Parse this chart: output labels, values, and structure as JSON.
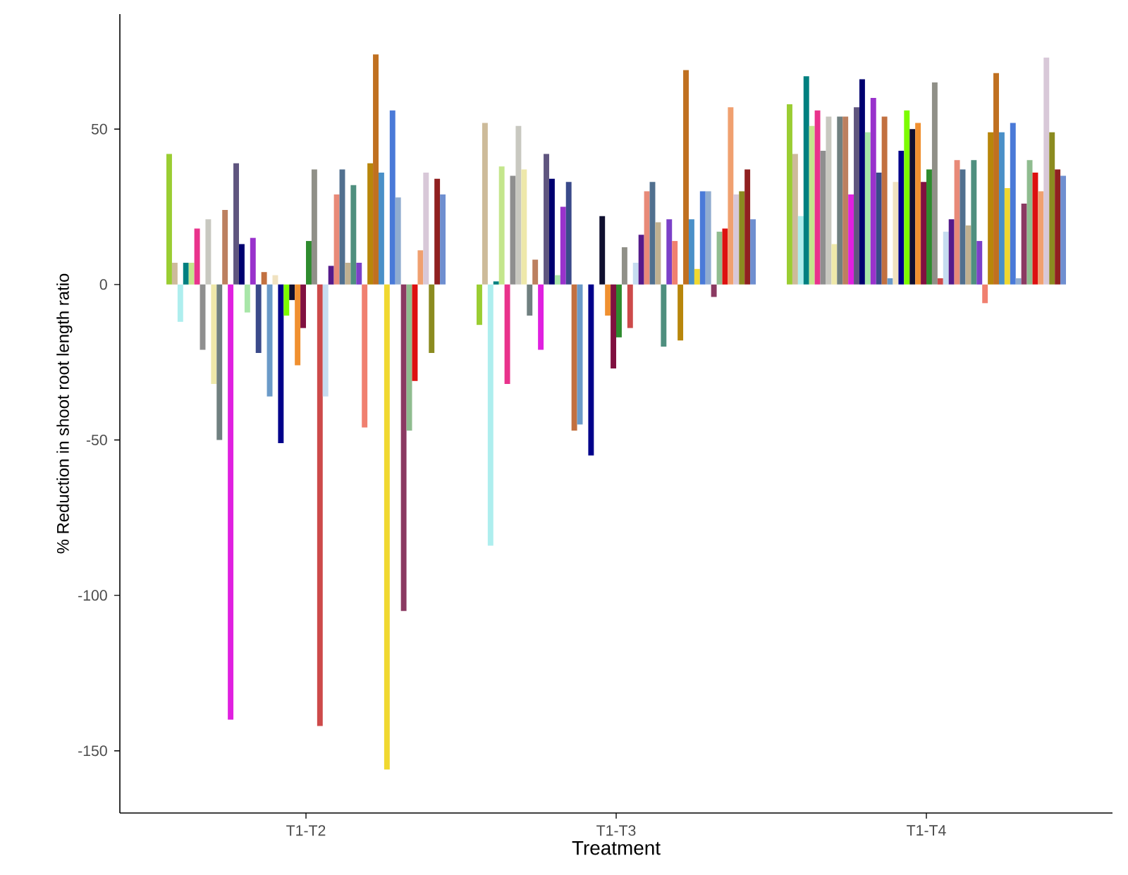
{
  "chart_data": {
    "type": "bar",
    "xlabel": "Treatment",
    "ylabel": "% Reduction in shoot root length ratio",
    "categories": [
      "T1-T2",
      "T1-T3",
      "T1-T4"
    ],
    "ylim": [
      -170,
      87
    ],
    "yticks": [
      -150,
      -100,
      -50,
      0,
      50
    ],
    "grid": false,
    "series": [
      {
        "color": "#9acd32",
        "values": [
          42,
          -13,
          58
        ]
      },
      {
        "color": "#cdbb9a",
        "values": [
          7,
          52,
          42
        ]
      },
      {
        "color": "#aeeeee",
        "values": [
          -12,
          -84,
          22
        ]
      },
      {
        "color": "#008080",
        "values": [
          7,
          1,
          67
        ]
      },
      {
        "color": "#c4e68c",
        "values": [
          7,
          38,
          51
        ]
      },
      {
        "color": "#e9338c",
        "values": [
          18,
          -32,
          56
        ]
      },
      {
        "color": "#8f8f8f",
        "values": [
          -21,
          35,
          43
        ]
      },
      {
        "color": "#c8c8c0",
        "values": [
          21,
          51,
          54
        ]
      },
      {
        "color": "#eee8aa",
        "values": [
          -32,
          37,
          13
        ]
      },
      {
        "color": "#708080",
        "values": [
          -50,
          -10,
          54
        ]
      },
      {
        "color": "#bc8060",
        "values": [
          24,
          8,
          54
        ]
      },
      {
        "color": "#e020e0",
        "values": [
          -140,
          -21,
          29
        ]
      },
      {
        "color": "#5f557f",
        "values": [
          39,
          42,
          57
        ]
      },
      {
        "color": "#000070",
        "values": [
          13,
          34,
          66
        ]
      },
      {
        "color": "#a8e6a8",
        "values": [
          -9,
          3,
          49
        ]
      },
      {
        "color": "#9932cc",
        "values": [
          15,
          25,
          60
        ]
      },
      {
        "color": "#3a4a8a",
        "values": [
          -22,
          33,
          36
        ]
      },
      {
        "color": "#c27040",
        "values": [
          4,
          -47,
          54
        ]
      },
      {
        "color": "#6a9ac8",
        "values": [
          -36,
          -45,
          2
        ]
      },
      {
        "color": "#f0e2c0",
        "values": [
          3,
          0,
          33
        ]
      },
      {
        "color": "#00008b",
        "values": [
          -51,
          -55,
          43
        ]
      },
      {
        "color": "#7cfc00",
        "values": [
          -10,
          0,
          56
        ]
      },
      {
        "color": "#101030",
        "values": [
          -5,
          22,
          50
        ]
      },
      {
        "color": "#f09030",
        "values": [
          -26,
          -10,
          52
        ]
      },
      {
        "color": "#801040",
        "values": [
          -14,
          -27,
          33
        ]
      },
      {
        "color": "#2e8b2e",
        "values": [
          14,
          -17,
          37
        ]
      },
      {
        "color": "#909088",
        "values": [
          37,
          12,
          65
        ]
      },
      {
        "color": "#cd4a4a",
        "values": [
          -142,
          -14,
          2
        ]
      },
      {
        "color": "#c6dcf0",
        "values": [
          -36,
          7,
          17
        ]
      },
      {
        "color": "#551a8b",
        "values": [
          6,
          16,
          21
        ]
      },
      {
        "color": "#e88a78",
        "values": [
          29,
          30,
          40
        ]
      },
      {
        "color": "#51708f",
        "values": [
          37,
          33,
          37
        ]
      },
      {
        "color": "#c0b090",
        "values": [
          7,
          20,
          19
        ]
      },
      {
        "color": "#4f8f7f",
        "values": [
          32,
          -20,
          40
        ]
      },
      {
        "color": "#7b40c8",
        "values": [
          7,
          21,
          14
        ]
      },
      {
        "color": "#f08070",
        "values": [
          -46,
          14,
          -6
        ]
      },
      {
        "color": "#b8860b",
        "values": [
          39,
          -18,
          49
        ]
      },
      {
        "color": "#c07020",
        "values": [
          74,
          69,
          68
        ]
      },
      {
        "color": "#4a90c8",
        "values": [
          36,
          21,
          49
        ]
      },
      {
        "color": "#f0d830",
        "values": [
          -156,
          5,
          31
        ]
      },
      {
        "color": "#4a7ad8",
        "values": [
          56,
          30,
          52
        ]
      },
      {
        "color": "#90acd0",
        "values": [
          28,
          30,
          2
        ]
      },
      {
        "color": "#8b3a62",
        "values": [
          -105,
          -4,
          26
        ]
      },
      {
        "color": "#8fbc8f",
        "values": [
          -47,
          17,
          40
        ]
      },
      {
        "color": "#dd1010",
        "values": [
          -31,
          18,
          36
        ]
      },
      {
        "color": "#f0a070",
        "values": [
          11,
          57,
          30
        ]
      },
      {
        "color": "#d8c8d8",
        "values": [
          36,
          29,
          73
        ]
      },
      {
        "color": "#8b8b20",
        "values": [
          -22,
          30,
          49
        ]
      },
      {
        "color": "#902020",
        "values": [
          34,
          37,
          37
        ]
      },
      {
        "color": "#6f8fd0",
        "values": [
          29,
          21,
          35
        ]
      }
    ]
  }
}
